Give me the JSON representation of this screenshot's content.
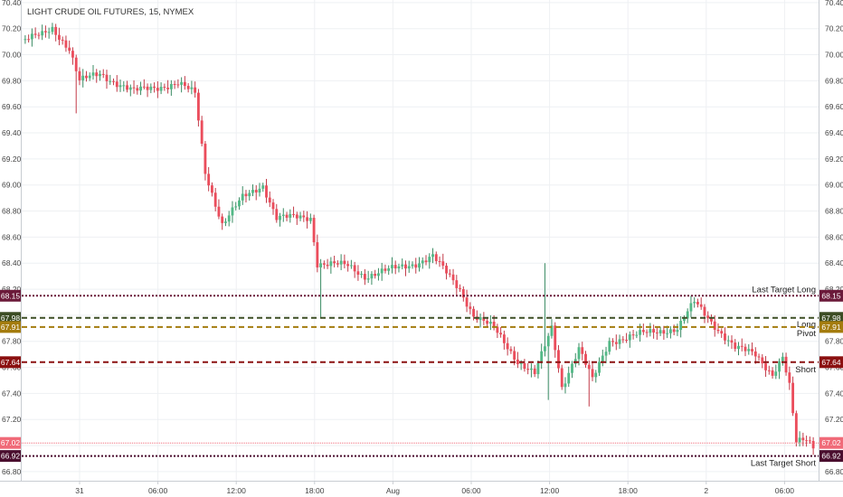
{
  "title": "LIGHT CRUDE OIL FUTURES, 15, NYMEX",
  "chart_data": {
    "type": "candlestick",
    "title": "LIGHT CRUDE OIL FUTURES, 15, NYMEX",
    "ylim": [
      66.73,
      70.42
    ],
    "y_ticks": [
      "70.40",
      "70.20",
      "70.00",
      "69.80",
      "69.60",
      "69.40",
      "69.20",
      "69.00",
      "68.80",
      "68.60",
      "68.40",
      "68.20",
      "68.00",
      "67.80",
      "67.60",
      "67.40",
      "67.20",
      "67.00",
      "66.80"
    ],
    "x_ticks": [
      "31",
      "06:00",
      "12:00",
      "18:00",
      "Aug",
      "06:00",
      "12:00",
      "18:00",
      "2",
      "06:00"
    ],
    "grid": true,
    "colors": {
      "up": "#53b987",
      "down": "#eb4d5c",
      "grid": "#eef0f3"
    },
    "levels": [
      {
        "name": "Last Target Long",
        "value": 68.15,
        "tag": "68.15",
        "color": "#6b1a3a",
        "style": "dotted"
      },
      {
        "name": "Long",
        "value": 67.98,
        "tag": "67.98",
        "color": "#3c4d24",
        "style": "dashed"
      },
      {
        "name": "Pivot",
        "value": 67.91,
        "tag": "67.91",
        "color": "#a47c0e",
        "style": "dashed"
      },
      {
        "name": "Short",
        "value": 67.64,
        "tag": "67.64",
        "color": "#8b1111",
        "style": "dashed"
      },
      {
        "name": "Last Target Short",
        "value": 66.92,
        "tag": "66.92",
        "color": "#4a0e2e",
        "style": "dotted"
      }
    ],
    "last_price": {
      "value": 67.02,
      "tag": "67.02",
      "color": "#f06a78"
    },
    "anchors": [
      {
        "i": 0,
        "p": 70.12
      },
      {
        "i": 5,
        "p": 70.15
      },
      {
        "i": 8,
        "p": 70.2
      },
      {
        "i": 13,
        "p": 70.05
      },
      {
        "i": 16,
        "p": 69.8
      },
      {
        "i": 22,
        "p": 69.85
      },
      {
        "i": 32,
        "p": 69.72
      },
      {
        "i": 45,
        "p": 69.78
      },
      {
        "i": 50,
        "p": 69.7
      },
      {
        "i": 53,
        "p": 69.1
      },
      {
        "i": 58,
        "p": 68.7
      },
      {
        "i": 64,
        "p": 68.9
      },
      {
        "i": 70,
        "p": 69.0
      },
      {
        "i": 74,
        "p": 68.75
      },
      {
        "i": 84,
        "p": 68.75
      },
      {
        "i": 86,
        "p": 68.4
      },
      {
        "i": 95,
        "p": 68.38
      },
      {
        "i": 100,
        "p": 68.3
      },
      {
        "i": 115,
        "p": 68.4
      },
      {
        "i": 120,
        "p": 68.45
      },
      {
        "i": 128,
        "p": 68.2
      },
      {
        "i": 132,
        "p": 68.0
      },
      {
        "i": 138,
        "p": 67.9
      },
      {
        "i": 145,
        "p": 67.65
      },
      {
        "i": 150,
        "p": 67.55
      },
      {
        "i": 155,
        "p": 67.9
      },
      {
        "i": 158,
        "p": 67.45
      },
      {
        "i": 163,
        "p": 67.75
      },
      {
        "i": 167,
        "p": 67.5
      },
      {
        "i": 172,
        "p": 67.8
      },
      {
        "i": 180,
        "p": 67.85
      },
      {
        "i": 192,
        "p": 67.9
      },
      {
        "i": 197,
        "p": 68.1
      },
      {
        "i": 202,
        "p": 67.95
      },
      {
        "i": 209,
        "p": 67.75
      },
      {
        "i": 215,
        "p": 67.7
      },
      {
        "i": 220,
        "p": 67.55
      },
      {
        "i": 223,
        "p": 67.68
      },
      {
        "i": 225,
        "p": 67.45
      },
      {
        "i": 227,
        "p": 67.02
      },
      {
        "i": 230,
        "p": 67.05
      },
      {
        "i": 232,
        "p": 67.0
      }
    ],
    "spikes": [
      {
        "i": 15,
        "low": 69.55
      },
      {
        "i": 87,
        "low": 67.98
      },
      {
        "i": 153,
        "high": 68.4
      },
      {
        "i": 154,
        "low": 67.35
      },
      {
        "i": 166,
        "low": 67.3
      }
    ]
  }
}
